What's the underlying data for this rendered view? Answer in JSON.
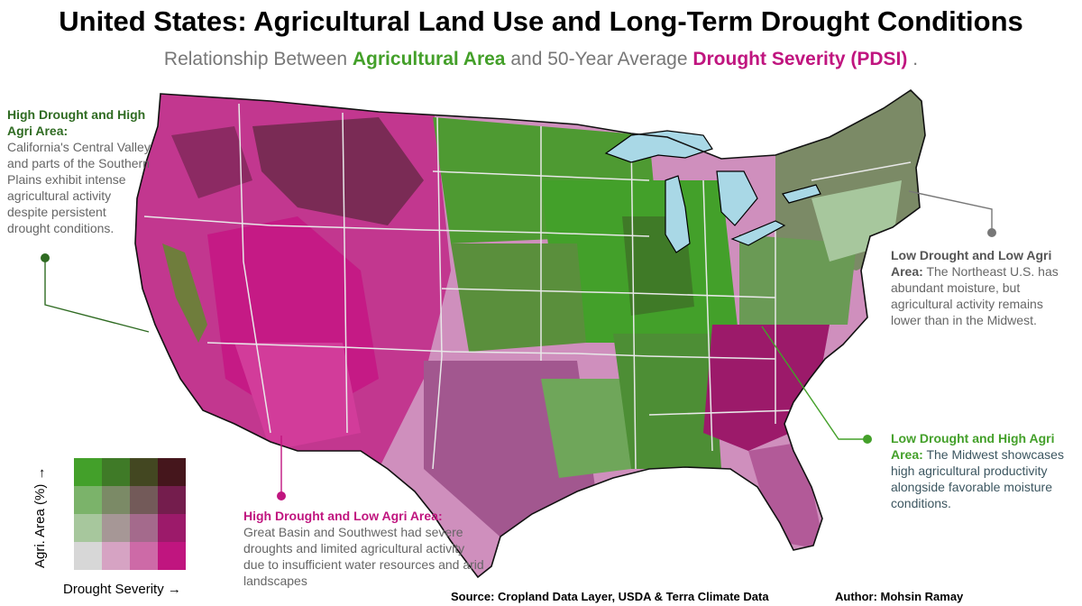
{
  "header": {
    "title": "United States: Agricultural Land Use and Long-Term Drought Conditions",
    "subtitle_pre": "Relationship Between ",
    "subtitle_agri": "Agricultural Area",
    "subtitle_mid": " and 50-Year Average ",
    "subtitle_drought": "Drought Severity (PDSI)",
    "subtitle_post": " ."
  },
  "annotations": {
    "high_drought_high_agri": {
      "head": "High Drought and High Agri Area:",
      "body": "California's Central Valley and parts of the Southern Plains exhibit intense agricultural activity despite persistent drought conditions."
    },
    "high_drought_low_agri": {
      "head": "High Drought and Low Agri Area:",
      "body": "Great Basin and Southwest had severe droughts and limited agricultural activity due to insufficient water resources and arid landscapes"
    },
    "low_drought_low_agri": {
      "head": "Low Drought and Low Agri Area:",
      "body": "The Northeast U.S. has abundant moisture, but agricultural activity remains lower than in the Midwest."
    },
    "low_drought_high_agri": {
      "head": "Low Drought and High Agri Area:",
      "body": "The Midwest showcases high agricultural productivity alongside favorable moisture conditions."
    }
  },
  "legend": {
    "y_label": "Agri. Area (%) →",
    "x_label": "Drought Severity →",
    "colors": [
      [
        "#43a02a",
        "#3f7a27",
        "#434721",
        "#45161c"
      ],
      [
        "#7bb36a",
        "#7b8a66",
        "#735a59",
        "#741d4d"
      ],
      [
        "#a7c79d",
        "#a69796",
        "#a46a8c",
        "#9c1a6a"
      ],
      [
        "#d7d7d7",
        "#d6a3c3",
        "#cd6aa7",
        "#c0157f"
      ]
    ]
  },
  "colors": {
    "agri_accent": "#44a02a",
    "drought_accent": "#c0157f",
    "water": "#a9d8e6"
  },
  "footer": {
    "source": "Source: Cropland Data Layer, USDA & Terra Climate Data",
    "author": "Author: Mohsin Ramay"
  }
}
